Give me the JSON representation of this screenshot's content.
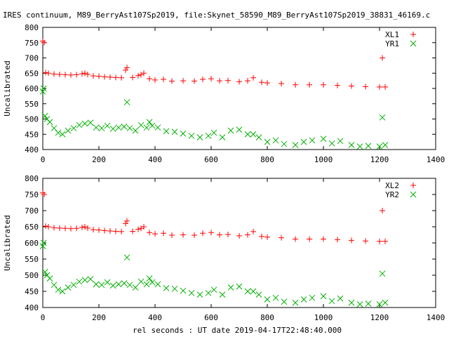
{
  "title": "IRES continuum, M89_BerryAst107Sp2019, file:Skynet_58590_M89_BerryAst107Sp2019_38831_46169.c",
  "xlabel": "rel seconds : UT date 2019-04-17T22:48:40.000",
  "colors": {
    "L": "#ff0000",
    "R": "#00b000",
    "axis": "#000000"
  },
  "chart_data": [
    {
      "type": "scatter",
      "ylabel": "Uncalibrated",
      "xlim": [
        0,
        1400
      ],
      "ylim": [
        400,
        800
      ],
      "xticks": [
        0,
        200,
        400,
        600,
        800,
        1000,
        1200,
        1400
      ],
      "yticks": [
        400,
        450,
        500,
        550,
        600,
        650,
        700,
        750,
        800
      ],
      "grid": false,
      "legend_position": "top-right",
      "series": [
        {
          "name": "XL1",
          "marker": "plus",
          "color": "#ff0000",
          "x": [
            0,
            5,
            10,
            20,
            40,
            60,
            80,
            100,
            120,
            140,
            150,
            160,
            180,
            200,
            220,
            240,
            260,
            280,
            295,
            300,
            320,
            340,
            350,
            360,
            380,
            400,
            430,
            460,
            500,
            540,
            570,
            600,
            630,
            660,
            700,
            730,
            750,
            780,
            800,
            850,
            900,
            950,
            1000,
            1050,
            1100,
            1150,
            1200,
            1210,
            1220
          ],
          "y": [
            755,
            750,
            652,
            650,
            647,
            646,
            645,
            644,
            645,
            648,
            650,
            646,
            641,
            640,
            638,
            637,
            636,
            635,
            660,
            668,
            636,
            642,
            645,
            650,
            632,
            628,
            630,
            624,
            625,
            624,
            630,
            632,
            625,
            626,
            622,
            625,
            635,
            620,
            618,
            616,
            612,
            612,
            612,
            610,
            608,
            606,
            605,
            700,
            605
          ]
        },
        {
          "name": "YR1",
          "marker": "cross",
          "color": "#00b000",
          "x": [
            0,
            3,
            8,
            15,
            25,
            40,
            55,
            70,
            90,
            110,
            130,
            150,
            170,
            190,
            210,
            230,
            250,
            270,
            290,
            300,
            310,
            330,
            350,
            370,
            380,
            390,
            410,
            440,
            470,
            500,
            530,
            560,
            590,
            610,
            640,
            670,
            700,
            730,
            750,
            770,
            800,
            830,
            860,
            900,
            930,
            960,
            1000,
            1030,
            1060,
            1100,
            1130,
            1160,
            1200,
            1210,
            1220
          ],
          "y": [
            590,
            600,
            510,
            500,
            490,
            470,
            455,
            450,
            462,
            470,
            480,
            485,
            488,
            472,
            470,
            478,
            468,
            472,
            475,
            555,
            470,
            462,
            480,
            472,
            490,
            478,
            472,
            460,
            458,
            452,
            445,
            440,
            445,
            455,
            440,
            462,
            465,
            450,
            450,
            440,
            425,
            430,
            418,
            415,
            425,
            430,
            435,
            420,
            428,
            415,
            410,
            412,
            410,
            505,
            415
          ]
        }
      ]
    },
    {
      "type": "scatter",
      "ylabel": "Uncalibrated",
      "xlim": [
        0,
        1400
      ],
      "ylim": [
        400,
        800
      ],
      "xticks": [
        0,
        200,
        400,
        600,
        800,
        1000,
        1200,
        1400
      ],
      "yticks": [
        400,
        450,
        500,
        550,
        600,
        650,
        700,
        750,
        800
      ],
      "grid": false,
      "legend_position": "top-right",
      "series": [
        {
          "name": "XL2",
          "marker": "plus",
          "color": "#ff0000",
          "x": [
            0,
            5,
            10,
            20,
            40,
            60,
            80,
            100,
            120,
            140,
            150,
            160,
            180,
            200,
            220,
            240,
            260,
            280,
            295,
            300,
            320,
            340,
            350,
            360,
            380,
            400,
            430,
            460,
            500,
            540,
            570,
            600,
            630,
            660,
            700,
            730,
            750,
            780,
            800,
            850,
            900,
            950,
            1000,
            1050,
            1100,
            1150,
            1200,
            1210,
            1220
          ],
          "y": [
            755,
            750,
            652,
            650,
            647,
            646,
            645,
            644,
            645,
            648,
            650,
            646,
            641,
            640,
            638,
            637,
            636,
            635,
            660,
            668,
            636,
            642,
            645,
            650,
            632,
            628,
            630,
            624,
            625,
            624,
            630,
            632,
            625,
            626,
            622,
            625,
            635,
            620,
            618,
            616,
            612,
            612,
            612,
            610,
            608,
            606,
            605,
            700,
            605
          ]
        },
        {
          "name": "YR2",
          "marker": "cross",
          "color": "#00b000",
          "x": [
            0,
            3,
            8,
            15,
            25,
            40,
            55,
            70,
            90,
            110,
            130,
            150,
            170,
            190,
            210,
            230,
            250,
            270,
            290,
            300,
            310,
            330,
            350,
            370,
            380,
            390,
            410,
            440,
            470,
            500,
            530,
            560,
            590,
            610,
            640,
            670,
            700,
            730,
            750,
            770,
            800,
            830,
            860,
            900,
            930,
            960,
            1000,
            1030,
            1060,
            1100,
            1130,
            1160,
            1200,
            1210,
            1220
          ],
          "y": [
            590,
            600,
            510,
            500,
            490,
            470,
            455,
            450,
            462,
            470,
            480,
            485,
            488,
            472,
            470,
            478,
            468,
            472,
            475,
            555,
            470,
            462,
            480,
            472,
            490,
            478,
            472,
            460,
            458,
            452,
            445,
            440,
            445,
            455,
            440,
            462,
            465,
            450,
            450,
            440,
            425,
            430,
            418,
            415,
            425,
            430,
            435,
            420,
            428,
            415,
            410,
            412,
            410,
            505,
            415
          ]
        }
      ]
    }
  ]
}
